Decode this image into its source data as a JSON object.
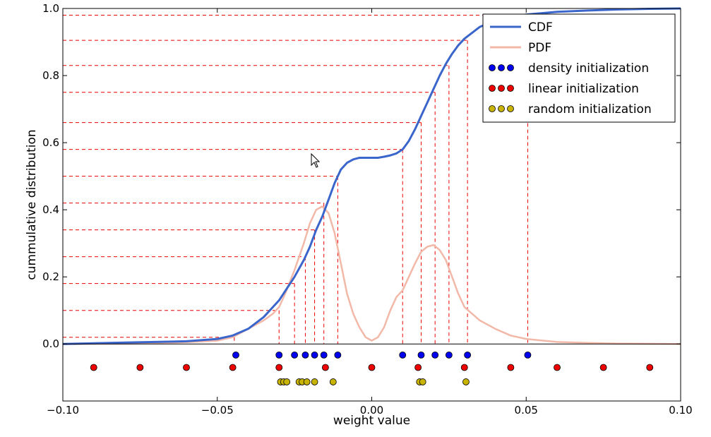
{
  "chart_data": {
    "type": "line",
    "xlabel": "weight value",
    "ylabel": "cummulative distribution",
    "xlim": [
      -0.1,
      0.1
    ],
    "ylim": [
      -0.17,
      1.0
    ],
    "xticks": [
      -0.1,
      -0.05,
      0.0,
      0.05,
      0.1
    ],
    "xtick_labels": [
      "−0.10",
      "−0.05",
      "0.00",
      "0.05",
      "0.10"
    ],
    "yticks": [
      0.0,
      0.2,
      0.4,
      0.6,
      0.8,
      1.0
    ],
    "ytick_labels": [
      "0.0",
      "0.2",
      "0.4",
      "0.6",
      "0.8",
      "1.0"
    ],
    "legend_position": "top-right",
    "series": [
      {
        "name": "CDF",
        "kind": "line",
        "color": "#3a66cc",
        "x": [
          -0.1,
          -0.08,
          -0.06,
          -0.05,
          -0.045,
          -0.04,
          -0.035,
          -0.03,
          -0.025,
          -0.022,
          -0.02,
          -0.018,
          -0.016,
          -0.014,
          -0.012,
          -0.01,
          -0.008,
          -0.006,
          -0.004,
          -0.002,
          0.0,
          0.002,
          0.004,
          0.006,
          0.008,
          0.01,
          0.012,
          0.014,
          0.016,
          0.018,
          0.02,
          0.022,
          0.024,
          0.026,
          0.028,
          0.03,
          0.035,
          0.04,
          0.045,
          0.05,
          0.06,
          0.07,
          0.08,
          0.09,
          0.1
        ],
        "y": [
          0.0,
          0.004,
          0.008,
          0.015,
          0.025,
          0.045,
          0.08,
          0.13,
          0.2,
          0.25,
          0.29,
          0.34,
          0.38,
          0.43,
          0.48,
          0.52,
          0.54,
          0.55,
          0.555,
          0.555,
          0.555,
          0.555,
          0.558,
          0.562,
          0.568,
          0.58,
          0.605,
          0.64,
          0.68,
          0.72,
          0.76,
          0.8,
          0.835,
          0.865,
          0.89,
          0.91,
          0.945,
          0.965,
          0.975,
          0.982,
          0.99,
          0.994,
          0.997,
          0.999,
          1.0
        ]
      },
      {
        "name": "PDF",
        "kind": "line",
        "color": "#f2b8a8",
        "x": [
          -0.1,
          -0.08,
          -0.06,
          -0.05,
          -0.045,
          -0.04,
          -0.035,
          -0.032,
          -0.03,
          -0.028,
          -0.025,
          -0.022,
          -0.02,
          -0.018,
          -0.016,
          -0.014,
          -0.012,
          -0.01,
          -0.008,
          -0.006,
          -0.004,
          -0.002,
          0.0,
          0.002,
          0.004,
          0.006,
          0.008,
          0.01,
          0.012,
          0.014,
          0.016,
          0.018,
          0.02,
          0.022,
          0.024,
          0.026,
          0.028,
          0.03,
          0.035,
          0.04,
          0.045,
          0.05,
          0.06,
          0.07,
          0.08,
          0.1
        ],
        "y": [
          0.0,
          0.001,
          0.005,
          0.01,
          0.02,
          0.045,
          0.07,
          0.09,
          0.11,
          0.15,
          0.22,
          0.3,
          0.36,
          0.4,
          0.41,
          0.39,
          0.33,
          0.24,
          0.15,
          0.09,
          0.05,
          0.02,
          0.01,
          0.02,
          0.05,
          0.1,
          0.14,
          0.16,
          0.2,
          0.24,
          0.275,
          0.29,
          0.295,
          0.28,
          0.25,
          0.2,
          0.15,
          0.11,
          0.07,
          0.045,
          0.025,
          0.015,
          0.006,
          0.003,
          0.001,
          0.0
        ]
      },
      {
        "name": "density initialization",
        "kind": "scatter",
        "color": "#0000ee",
        "y_level": -0.033,
        "x": [
          -0.044,
          -0.03,
          -0.025,
          -0.0215,
          -0.0185,
          -0.0155,
          -0.011,
          0.01,
          0.016,
          0.0205,
          0.025,
          0.031,
          0.0505
        ]
      },
      {
        "name": "linear initialization",
        "kind": "scatter",
        "color": "#ee0000",
        "y_level": -0.07,
        "x": [
          -0.09,
          -0.075,
          -0.06,
          -0.045,
          -0.03,
          -0.015,
          0.0,
          0.015,
          0.03,
          0.045,
          0.06,
          0.075,
          0.09
        ]
      },
      {
        "name": "random initialization",
        "kind": "scatter",
        "color": "#c8b400",
        "y_level": -0.113,
        "x": [
          -0.0295,
          -0.0285,
          -0.0275,
          -0.0235,
          -0.0225,
          -0.021,
          -0.0185,
          -0.0125,
          0.0155,
          0.0165,
          0.0305
        ]
      }
    ],
    "mapping_lines": {
      "color": "#ee0000",
      "points": [
        {
          "x": -0.0445,
          "y": 0.02
        },
        {
          "x": -0.03,
          "y": 0.1
        },
        {
          "x": -0.025,
          "y": 0.18
        },
        {
          "x": -0.0215,
          "y": 0.26
        },
        {
          "x": -0.0185,
          "y": 0.34
        },
        {
          "x": -0.0155,
          "y": 0.42
        },
        {
          "x": -0.011,
          "y": 0.5
        },
        {
          "x": 0.01,
          "y": 0.58
        },
        {
          "x": 0.016,
          "y": 0.66
        },
        {
          "x": 0.0205,
          "y": 0.75
        },
        {
          "x": 0.025,
          "y": 0.83
        },
        {
          "x": 0.031,
          "y": 0.905
        },
        {
          "x": 0.0505,
          "y": 0.98
        }
      ]
    }
  }
}
